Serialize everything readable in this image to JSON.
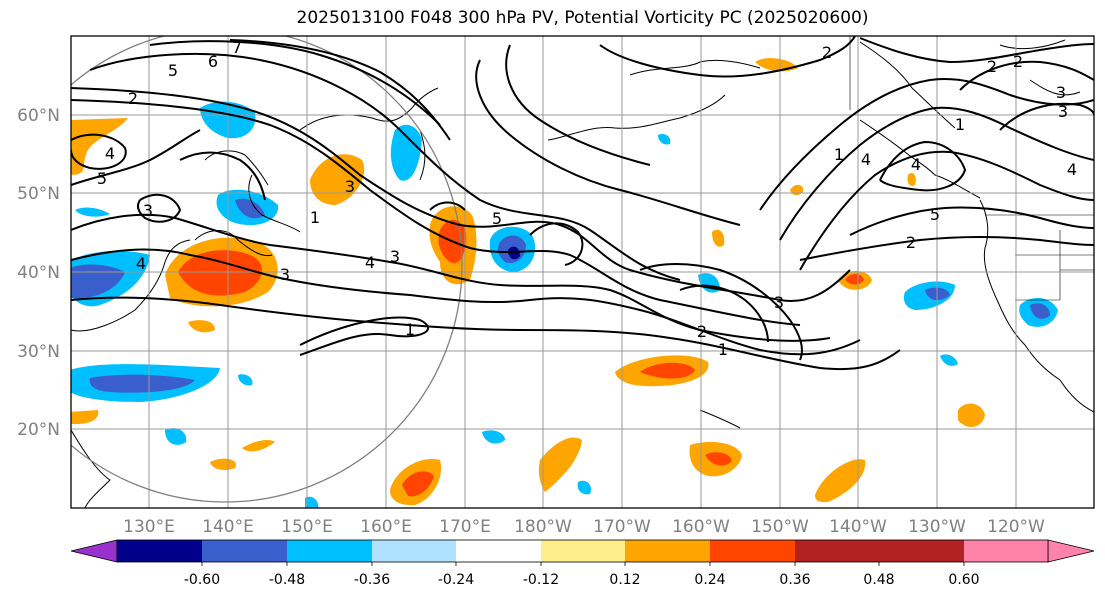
{
  "title": "2025013100 F048 300 hPa PV, Potential Vorticity PC (2025020600)",
  "lat_labels": [
    "60°N",
    "50°N",
    "40°N",
    "30°N",
    "20°N"
  ],
  "lon_labels": [
    "130°E",
    "140°E",
    "150°E",
    "160°E",
    "170°E",
    "180°W",
    "170°W",
    "160°W",
    "150°W",
    "140°W",
    "130°W",
    "120°W"
  ],
  "colorbar": {
    "colors": [
      "#9932cc",
      "#00008b",
      "#3a5fcd",
      "#00bfff",
      "#b0e2ff",
      "#ffffff",
      "#ffec8b",
      "#ffa500",
      "#ff4500",
      "#b22222",
      "#ff82ab"
    ],
    "tick_labels": [
      "-0.60",
      "-0.48",
      "-0.36",
      "-0.24",
      "-0.12",
      "0.12",
      "0.24",
      "0.36",
      "0.48",
      "0.60"
    ]
  },
  "contour_labels": [
    "7",
    "6",
    "5",
    "2",
    "4",
    "5",
    "3",
    "4",
    "3",
    "1",
    "3",
    "4",
    "3",
    "1",
    "5",
    "2",
    "3",
    "2",
    "1",
    "1",
    "2",
    "1",
    "5",
    "2",
    "3",
    "4",
    "4",
    "4",
    "2",
    "3"
  ]
}
